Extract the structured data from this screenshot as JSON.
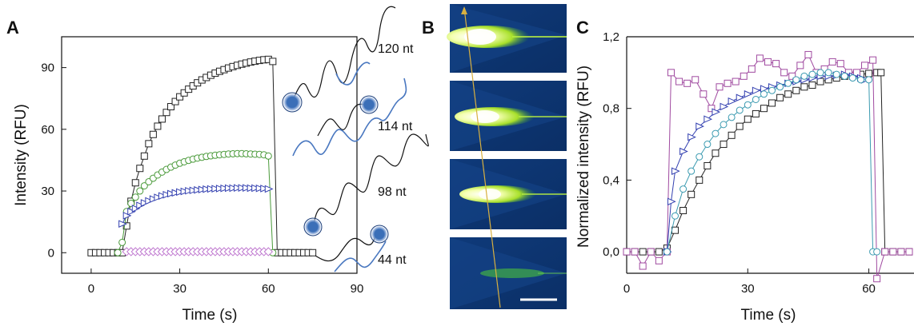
{
  "panels": {
    "A": {
      "letter": "A"
    },
    "B": {
      "letter": "B"
    },
    "C": {
      "letter": "C"
    }
  },
  "chart_data": [
    {
      "panel": "A",
      "type": "line",
      "xlabel": "Time (s)",
      "ylabel": "Intensity (RFU)",
      "xlim": [
        -10,
        90
      ],
      "ylim": [
        -10,
        105
      ],
      "xticks": [
        "0",
        "30",
        "60",
        "90"
      ],
      "yticks": [
        "0",
        "30",
        "60",
        "90"
      ],
      "series": [
        {
          "name": "120 nt",
          "marker": "square",
          "color": "#222222",
          "x": [
            0,
            1.5,
            3,
            4.5,
            6,
            7.5,
            9,
            10.5,
            12,
            13.5,
            15,
            16.5,
            18,
            19.5,
            21,
            22.5,
            24,
            25.5,
            27,
            28.5,
            30,
            31.5,
            33,
            34.5,
            36,
            37.5,
            39,
            40.5,
            42,
            43.5,
            45,
            46.5,
            48,
            49.5,
            51,
            52.5,
            54,
            55.5,
            57,
            58.5,
            60,
            61.5,
            63,
            64.5,
            66,
            67.5,
            69,
            70.5,
            72,
            73.5,
            75
          ],
          "y": [
            0,
            0,
            0,
            0,
            0,
            0,
            0,
            0,
            13,
            25,
            34,
            41,
            47,
            53,
            57.5,
            61.5,
            65,
            68.2,
            71,
            73.5,
            75.8,
            77.7,
            79.5,
            81.1,
            82.6,
            84,
            85.2,
            86.3,
            87.3,
            88.2,
            89,
            89.8,
            90.5,
            91.1,
            91.7,
            92.2,
            92.7,
            93.1,
            93.5,
            93.8,
            94,
            93,
            0,
            0,
            0,
            0,
            0,
            0,
            0,
            0,
            0
          ]
        },
        {
          "name": "114 nt",
          "marker": "circle",
          "color": "#4a9a3a",
          "x": [
            9,
            10.5,
            12,
            13.5,
            15,
            16.5,
            18,
            19.5,
            21,
            22.5,
            24,
            25.5,
            27,
            28.5,
            30,
            31.5,
            33,
            34.5,
            36,
            37.5,
            39,
            40.5,
            42,
            43.5,
            45,
            46.5,
            48,
            49.5,
            51,
            52.5,
            54,
            55.5,
            57,
            58.5,
            60,
            61.5
          ],
          "y": [
            0,
            5,
            20,
            24,
            27,
            30,
            32.5,
            34.5,
            36.2,
            37.8,
            39.2,
            40.5,
            41.6,
            42.6,
            43.5,
            44.2,
            44.9,
            45.5,
            46,
            46.4,
            46.8,
            47.1,
            47.4,
            47.6,
            47.8,
            48,
            48.1,
            48.2,
            48.2,
            48.1,
            48,
            47.9,
            47.8,
            47.6,
            47,
            0
          ]
        },
        {
          "name": "98 nt",
          "marker": "triangle-right",
          "color": "#3340b0",
          "x": [
            10.5,
            12,
            13.5,
            15,
            16.5,
            18,
            19.5,
            21,
            22.5,
            24,
            25.5,
            27,
            28.5,
            30,
            31.5,
            33,
            34.5,
            36,
            37.5,
            39,
            40.5,
            42,
            43.5,
            45,
            46.5,
            48,
            49.5,
            51,
            52.5,
            54,
            55.5,
            57,
            58.5,
            60
          ],
          "y": [
            14,
            18,
            20,
            21.5,
            23,
            24.2,
            25.2,
            26.1,
            26.9,
            27.6,
            28.2,
            28.7,
            29.1,
            29.5,
            29.8,
            30.1,
            30.3,
            30.5,
            30.7,
            30.9,
            31,
            31.1,
            31.2,
            31.3,
            31.4,
            31.4,
            31.5,
            31.5,
            31.5,
            31.4,
            31.4,
            31.3,
            31.2,
            31
          ]
        },
        {
          "name": "44 nt",
          "marker": "diamond",
          "color": "#c07ad0",
          "x": [
            12,
            13.5,
            15,
            16.5,
            18,
            19.5,
            21,
            22.5,
            24,
            25.5,
            27,
            28.5,
            30,
            31.5,
            33,
            34.5,
            36,
            37.5,
            39,
            40.5,
            42,
            43.5,
            45,
            46.5,
            48,
            49.5,
            51,
            52.5,
            54,
            55.5,
            57,
            58.5,
            60
          ],
          "y": [
            0.5,
            0.5,
            0.5,
            0.5,
            0.5,
            0.5,
            0.5,
            0.5,
            0.5,
            0.5,
            0.5,
            0.5,
            0.5,
            0.5,
            0.5,
            0.5,
            0.5,
            0.5,
            0.5,
            0.5,
            0.5,
            0.5,
            0.5,
            0.5,
            0.5,
            0.5,
            0.5,
            0.5,
            0.5,
            0.5,
            0.5,
            0.5,
            0.5
          ]
        }
      ],
      "annotations": [
        "120 nt",
        "114 nt",
        "98 nt",
        "44 nt"
      ]
    },
    {
      "panel": "C",
      "type": "line",
      "xlabel": "Time (s)",
      "ylabel": "Normalized intensity (RFU)",
      "xlim": [
        0,
        70
      ],
      "ylim": [
        -0.12,
        1.2
      ],
      "xticks": [
        "0",
        "30",
        "60"
      ],
      "yticks": [
        "0,0",
        "0,4",
        "0,8",
        "1,2"
      ],
      "series": [
        {
          "marker": "square",
          "color": "#222222",
          "x": [
            0,
            2,
            4,
            6,
            8,
            10,
            12,
            14,
            16,
            18,
            20,
            22,
            24,
            26,
            28,
            30,
            32,
            34,
            36,
            38,
            40,
            42,
            44,
            46,
            48,
            50,
            52,
            54,
            56,
            58,
            60,
            62,
            63,
            64,
            66,
            68,
            70
          ],
          "y": [
            0,
            0,
            0,
            0,
            0,
            0.02,
            0.12,
            0.23,
            0.32,
            0.4,
            0.48,
            0.55,
            0.6,
            0.65,
            0.7,
            0.74,
            0.77,
            0.8,
            0.83,
            0.86,
            0.88,
            0.9,
            0.92,
            0.93,
            0.95,
            0.96,
            0.97,
            0.98,
            0.985,
            0.99,
            0.995,
            1.0,
            1.0,
            0,
            0,
            0,
            0
          ]
        },
        {
          "marker": "square",
          "color": "#a04aa0",
          "x": [
            0,
            2,
            4,
            6,
            8,
            10,
            11,
            13,
            15,
            17,
            19,
            21,
            23,
            25,
            27,
            29,
            31,
            33,
            35,
            37,
            39,
            41,
            43,
            45,
            47,
            49,
            51,
            53,
            55,
            57,
            59,
            61,
            62,
            64,
            66,
            68,
            70
          ],
          "y": [
            0,
            0,
            -0.08,
            0,
            -0.05,
            0,
            1.0,
            0.95,
            0.94,
            0.96,
            0.88,
            0.8,
            0.92,
            0.94,
            0.95,
            0.98,
            1.02,
            1.08,
            1.06,
            1.05,
            1.0,
            0.98,
            1.04,
            1.1,
            1.0,
            1.02,
            1.06,
            1.05,
            1.0,
            1.0,
            1.04,
            1.07,
            -0.15,
            0,
            0,
            0,
            0
          ]
        },
        {
          "marker": "triangle-right",
          "color": "#3340b0",
          "x": [
            10,
            11,
            12,
            14,
            16,
            18,
            20,
            22,
            24,
            26,
            28,
            30,
            32,
            34,
            36,
            38,
            40,
            42,
            44,
            46,
            48,
            50,
            52,
            54,
            56,
            58,
            59
          ],
          "y": [
            0.0,
            0.28,
            0.45,
            0.56,
            0.64,
            0.7,
            0.74,
            0.78,
            0.81,
            0.84,
            0.86,
            0.88,
            0.9,
            0.91,
            0.92,
            0.93,
            0.94,
            0.95,
            0.96,
            0.97,
            0.98,
            0.98,
            0.985,
            0.99,
            0.98,
            0.97,
            0.96
          ]
        },
        {
          "marker": "circle",
          "color": "#3a9ab0",
          "x": [
            10,
            12,
            14,
            16,
            18,
            20,
            22,
            24,
            26,
            28,
            30,
            32,
            34,
            36,
            38,
            40,
            42,
            44,
            46,
            48,
            50,
            52,
            54,
            56,
            58,
            60,
            61,
            62
          ],
          "y": [
            0,
            0.2,
            0.35,
            0.45,
            0.53,
            0.6,
            0.66,
            0.71,
            0.75,
            0.79,
            0.82,
            0.85,
            0.88,
            0.9,
            0.92,
            0.94,
            0.96,
            0.98,
            0.99,
            1.0,
            1.0,
            0.99,
            0.98,
            0.97,
            0.96,
            0.96,
            0,
            0
          ]
        }
      ]
    }
  ],
  "panel_b": {
    "frames": 4,
    "scale_bar": true
  },
  "strands": {
    "labels": [
      "120 nt",
      "114 nt",
      "98 nt",
      "44 nt"
    ]
  }
}
